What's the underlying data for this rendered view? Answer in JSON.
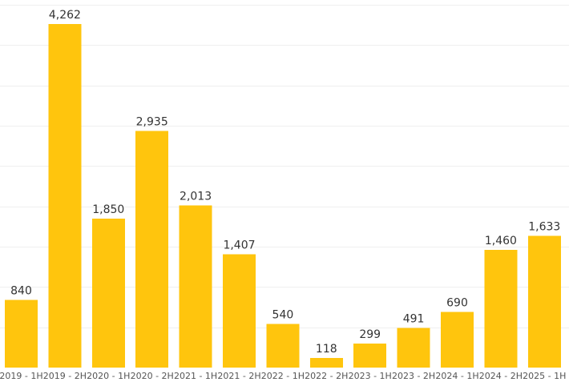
{
  "chart_data": {
    "type": "bar",
    "title": "",
    "xlabel": "",
    "ylabel": "",
    "categories": [
      "2019 - 1H",
      "2019 - 2H",
      "2020 - 1H",
      "2020 - 2H",
      "2021 - 1H",
      "2021 - 2H",
      "2022 - 1H",
      "2022 - 2H",
      "2023 - 1H",
      "2023 - 2H",
      "2024 - 1H",
      "2024 - 2H",
      "2025 - 1H"
    ],
    "values": [
      840,
      4262,
      1850,
      2935,
      2013,
      1407,
      540,
      118,
      299,
      491,
      690,
      1460,
      1633
    ],
    "value_labels": [
      "840",
      "4,262",
      "1,850",
      "2,935",
      "2,013",
      "1,407",
      "540",
      "118",
      "299",
      "491",
      "690",
      "1,460",
      "1,633"
    ],
    "ylim": [
      0,
      4500
    ],
    "grid": true,
    "legend": false,
    "bar_color": "#FFC50D",
    "grid_color": "#EFEFEF",
    "label_color": "#333333"
  }
}
